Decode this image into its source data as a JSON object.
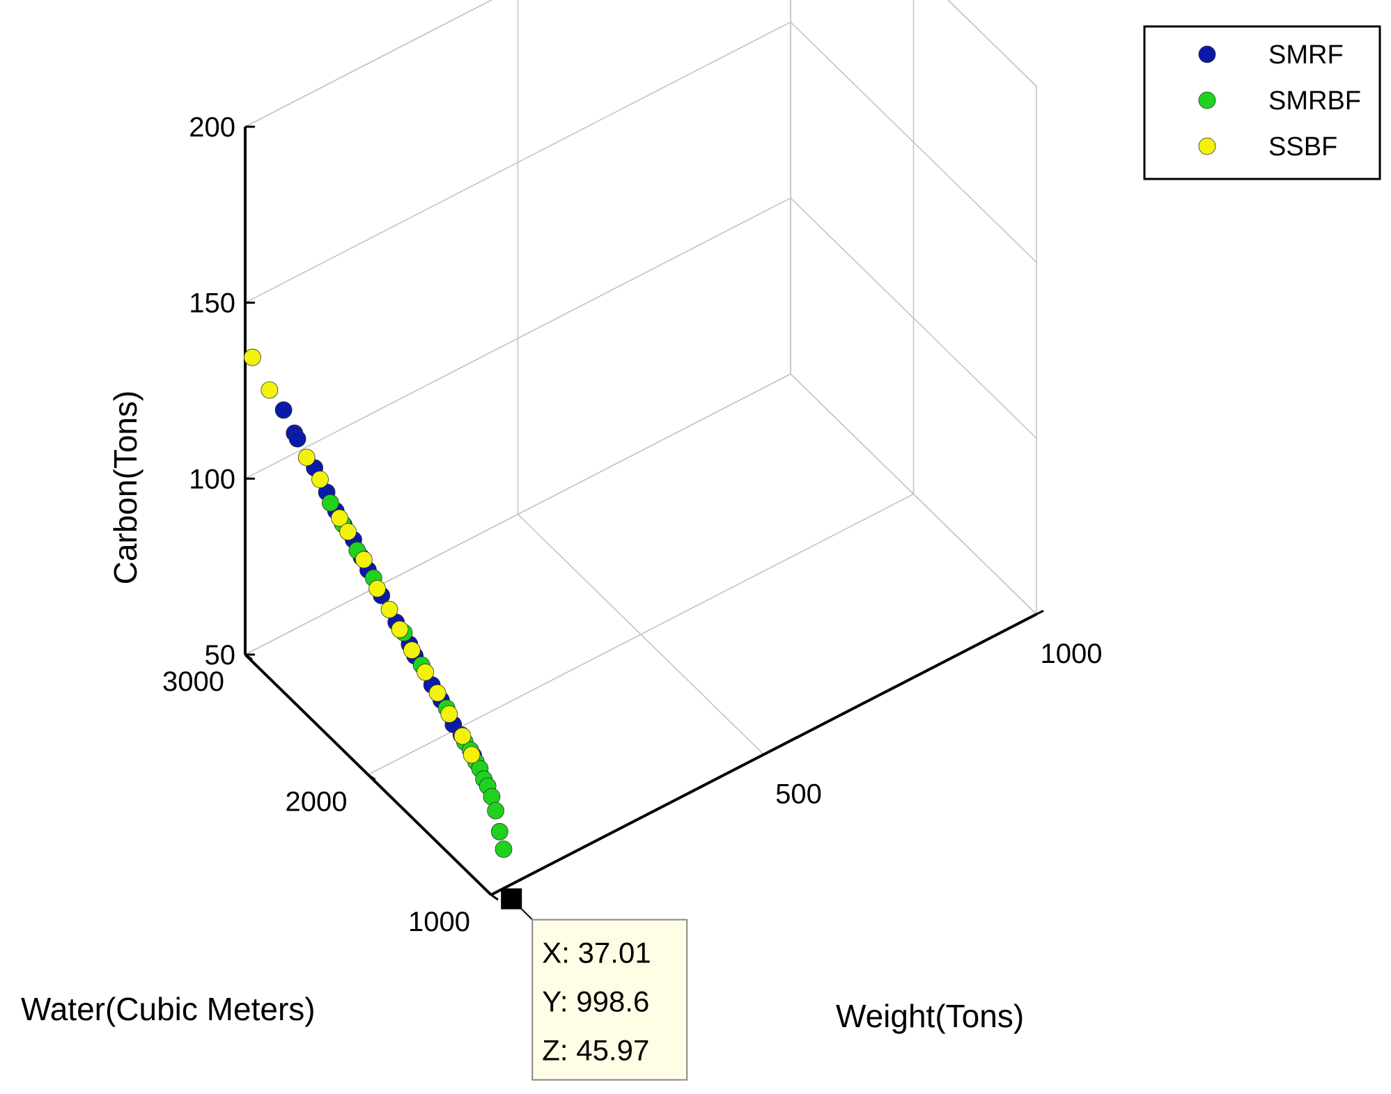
{
  "chart_data": {
    "type": "scatter",
    "dimensions": 3,
    "xlabel": "Weight(Tons)",
    "ylabel": "Water(Cubic Meters)",
    "zlabel": "Carbon(Tons)",
    "xlim": [
      0,
      1000
    ],
    "ylim": [
      1000,
      3000
    ],
    "zlim": [
      50,
      200
    ],
    "x_ticks": [
      "500",
      "1000"
    ],
    "y_ticks": [
      "1000",
      "2000",
      "3000"
    ],
    "z_ticks": [
      "50",
      "100",
      "150",
      "200"
    ],
    "grid": true,
    "legend_position": "top-right",
    "series": [
      {
        "name": "SMRF",
        "color": "#0a1aa8",
        "points": [
          [
            5,
            2710,
            129
          ],
          [
            7,
            2630,
            125
          ],
          [
            8,
            2610,
            124
          ],
          [
            10,
            2480,
            120
          ],
          [
            12,
            2390,
            116
          ],
          [
            13,
            2320,
            113
          ],
          [
            14,
            2260,
            111
          ],
          [
            16,
            2190,
            109
          ],
          [
            17,
            2130,
            106
          ],
          [
            18,
            2080,
            104
          ],
          [
            20,
            1980,
            100
          ],
          [
            22,
            1870,
            96
          ],
          [
            24,
            1770,
            93
          ],
          [
            25,
            1730,
            91
          ],
          [
            27,
            1600,
            87
          ],
          [
            28,
            1530,
            85
          ],
          [
            30,
            1440,
            81
          ],
          [
            31,
            1380,
            80
          ],
          [
            33,
            1290,
            77
          ]
        ]
      },
      {
        "name": "SMRBF",
        "color": "#1ed21e",
        "points": [
          [
            12,
            2360,
            114
          ],
          [
            14,
            2270,
            111
          ],
          [
            16,
            2160,
            107
          ],
          [
            19,
            2040,
            103
          ],
          [
            23,
            1810,
            95
          ],
          [
            26,
            1680,
            90
          ],
          [
            29,
            1490,
            84
          ],
          [
            31,
            1350,
            79
          ],
          [
            32,
            1310,
            78
          ],
          [
            33,
            1270,
            76
          ],
          [
            33.5,
            1240,
            75
          ],
          [
            34,
            1210,
            73
          ],
          [
            34.5,
            1180,
            72
          ],
          [
            35,
            1150,
            70
          ],
          [
            35.5,
            1120,
            67
          ],
          [
            36,
            1090,
            62
          ],
          [
            36.5,
            1060,
            58
          ]
        ]
      },
      {
        "name": "SSBF",
        "color": "#f2f20a",
        "points": [
          [
            2,
            2950,
            136
          ],
          [
            4,
            2820,
            131
          ],
          [
            9,
            2540,
            121
          ],
          [
            11,
            2440,
            118
          ],
          [
            13,
            2290,
            112
          ],
          [
            15,
            2230,
            110
          ],
          [
            17,
            2110,
            106
          ],
          [
            19,
            2010,
            101
          ],
          [
            21,
            1920,
            98
          ],
          [
            22,
            1840,
            95
          ],
          [
            24,
            1750,
            92
          ],
          [
            26,
            1650,
            89
          ],
          [
            28,
            1560,
            86
          ],
          [
            29,
            1470,
            83
          ],
          [
            31,
            1370,
            80
          ],
          [
            32,
            1300,
            77
          ]
        ]
      }
    ],
    "datatip": {
      "x": 37.01,
      "y": 998.6,
      "z": 45.97,
      "lines": [
        "X: 37.01",
        "Y: 998.6",
        "Z: 45.97"
      ]
    }
  }
}
